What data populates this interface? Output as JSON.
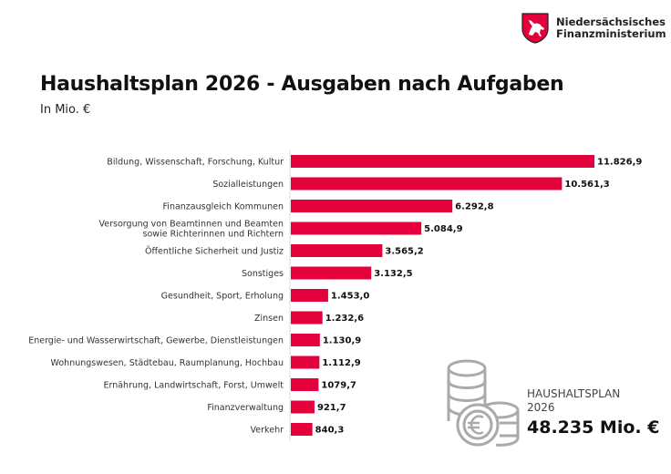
{
  "logo": {
    "line1": "Niedersächsisches",
    "line2": "Finanzministerium",
    "emblem": "lower-saxony-horse-shield"
  },
  "total": {
    "label1": "HAUSHALTSPLAN",
    "label2": "2026",
    "value": "48.235 Mio. €",
    "icon": "coins-euro-icon"
  },
  "colors": {
    "bar": "#e4003a",
    "text": "#222222"
  },
  "chart_data": {
    "type": "bar",
    "orientation": "horizontal",
    "title": "Haushaltsplan 2026 - Ausgaben nach Aufgaben",
    "subtitle": "In Mio. €",
    "categories": [
      [
        "Bildung, Wissenschaft, Forschung, Kultur"
      ],
      [
        "Sozialleistungen"
      ],
      [
        "Finanzausgleich Kommunen"
      ],
      [
        "Versorgung von Beamtinnen und Beamten",
        "sowie Richterinnen und Richtern"
      ],
      [
        "Öffentliche Sicherheit und Justiz"
      ],
      [
        "Sonstiges"
      ],
      [
        "Gesundheit, Sport, Erholung"
      ],
      [
        "Zinsen"
      ],
      [
        "Energie- und Wasserwirtschaft, Gewerbe, Dienstleistungen"
      ],
      [
        "Wohnungswesen, Städtebau, Raumplanung, Hochbau"
      ],
      [
        "Ernährung, Landwirtschaft, Forst, Umwelt"
      ],
      [
        "Finanzverwaltung"
      ],
      [
        "Verkehr"
      ]
    ],
    "values": [
      11826.9,
      10561.3,
      6292.8,
      5084.9,
      3565.2,
      3132.5,
      1453.0,
      1232.6,
      1130.9,
      1112.9,
      1079.7,
      921.7,
      840.3
    ],
    "data_labels": [
      "11.826,9",
      "10.561,3",
      "6.292,8",
      "5.084,9",
      "3.565,2",
      "3.132,5",
      "1.453,0",
      "1.232,6",
      "1.130,9",
      "1.112,9",
      "1079,7",
      "921,7",
      "840,3"
    ],
    "grid": false
  }
}
